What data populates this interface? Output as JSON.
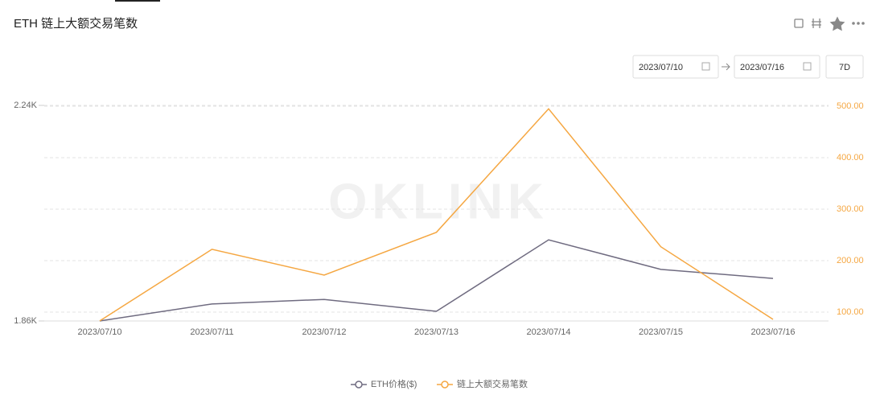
{
  "header": {
    "title": "ETH 链上大额交易笔数"
  },
  "controls": {
    "start_date": "2023/07/10",
    "end_date": "2023/07/16",
    "range_button": "7D"
  },
  "watermark": "OKLINK",
  "chart_data": {
    "type": "line",
    "categories": [
      "2023/07/10",
      "2023/07/11",
      "2023/07/12",
      "2023/07/13",
      "2023/07/14",
      "2023/07/15",
      "2023/07/16"
    ],
    "series": [
      {
        "name": "ETH价格($)",
        "color": "#6f6b80",
        "values": [
          1860,
          1890,
          1898,
          1877,
          2003,
          1951,
          1935
        ]
      },
      {
        "name": "链上大额交易笔数",
        "color": "#f5a742",
        "axis": "y2",
        "values": [
          83,
          222,
          172,
          255,
          495,
          227,
          86
        ]
      }
    ],
    "ylim": [
      1860,
      2240
    ],
    "yticks": [
      {
        "value": 1860,
        "label": "1.86K"
      },
      {
        "value": 2240,
        "label": "2.24K"
      }
    ],
    "y2lim": [
      82.8,
      501.6
    ],
    "y2ticks": [
      {
        "value": 100,
        "label": "100.00"
      },
      {
        "value": 200,
        "label": "200.00"
      },
      {
        "value": 300,
        "label": "300.00"
      },
      {
        "value": 400,
        "label": "400.00"
      },
      {
        "value": 500,
        "label": "500.00"
      }
    ],
    "grid": true,
    "legend": "bottom"
  }
}
